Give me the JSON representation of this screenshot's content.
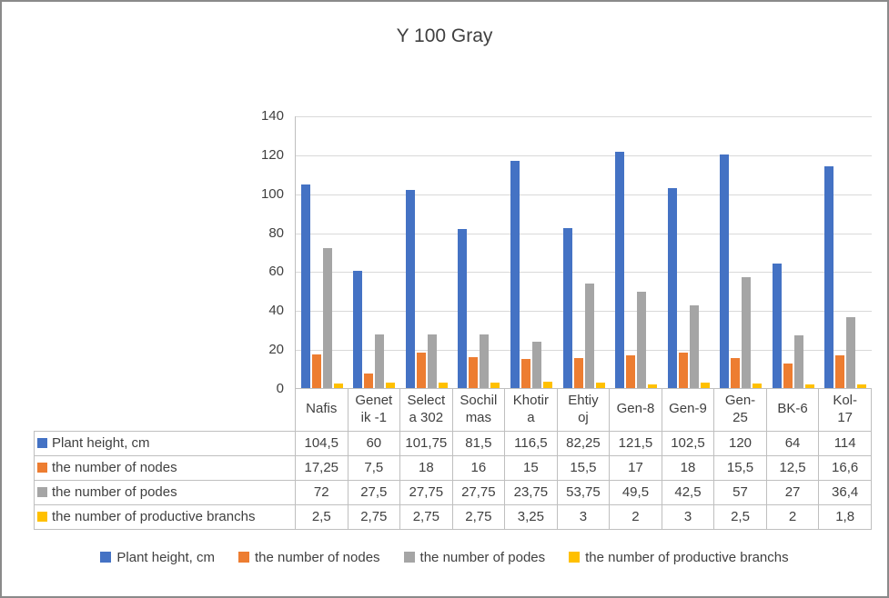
{
  "chart_data": {
    "type": "bar",
    "title": "Y 100 Gray",
    "categories": [
      "Nafis",
      "Genetik -1",
      "Selecta 302",
      "Sochilmas",
      "Khotira",
      "Ehtiyoj",
      "Gen-8",
      "Gen-9",
      "Gen-25",
      "BK-6",
      "Kol-17"
    ],
    "category_labels": [
      "Nafis",
      "Genet\nik -1",
      "Select\na 302",
      "Sochil\nmas",
      "Khotir\na",
      "Ehtiy\noj",
      "Gen-8",
      "Gen-9",
      "Gen-\n25",
      "BK-6",
      "Kol-\n17"
    ],
    "series": [
      {
        "name": "Plant height, cm",
        "color": "#4472C4",
        "values": [
          104.5,
          60,
          101.75,
          81.5,
          116.5,
          82.25,
          121.5,
          102.5,
          120,
          64,
          114
        ],
        "labels": [
          "104,5",
          "60",
          "101,75",
          "81,5",
          "116,5",
          "82,25",
          "121,5",
          "102,5",
          "120",
          "64",
          "114"
        ]
      },
      {
        "name": "the number of nodes",
        "color": "#ED7D31",
        "values": [
          17.25,
          7.5,
          18,
          16,
          15,
          15.5,
          17,
          18,
          15.5,
          12.5,
          16.6
        ],
        "labels": [
          "17,25",
          "7,5",
          "18",
          "16",
          "15",
          "15,5",
          "17",
          "18",
          "15,5",
          "12,5",
          "16,6"
        ]
      },
      {
        "name": "the number of podes",
        "color": "#A5A5A5",
        "values": [
          72,
          27.5,
          27.75,
          27.75,
          23.75,
          53.75,
          49.5,
          42.5,
          57,
          27,
          36.4
        ],
        "labels": [
          "72",
          "27,5",
          "27,75",
          "27,75",
          "23,75",
          "53,75",
          "49,5",
          "42,5",
          "57",
          "27",
          "36,4"
        ]
      },
      {
        "name": "the number of productive branchs",
        "color": "#FFC000",
        "values": [
          2.5,
          2.75,
          2.75,
          2.75,
          3.25,
          3,
          2,
          3,
          2.5,
          2,
          1.8
        ],
        "labels": [
          "2,5",
          "2,75",
          "2,75",
          "2,75",
          "3,25",
          "3",
          "2",
          "3",
          "2,5",
          "2",
          "1,8"
        ]
      }
    ],
    "ylim": [
      0,
      140
    ],
    "yticks": [
      0,
      20,
      40,
      60,
      80,
      100,
      120,
      140
    ],
    "grid": true,
    "legend_position": "bottom",
    "data_table": true
  }
}
